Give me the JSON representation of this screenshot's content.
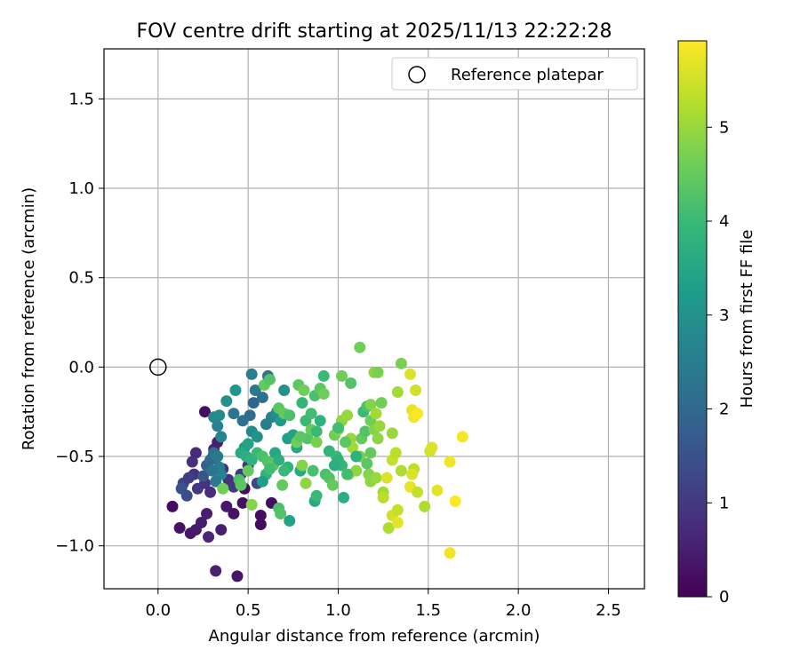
{
  "chart_data": {
    "type": "scatter",
    "title": "FOV centre drift starting at 2025/11/13 22:22:28",
    "xlabel": "Angular distance from reference (arcmin)",
    "ylabel": "Rotation from reference (arcmin)",
    "xlim": [
      -0.3,
      2.7
    ],
    "ylim": [
      -1.24,
      1.78
    ],
    "xticks": [
      0.0,
      0.5,
      1.0,
      1.5,
      2.0,
      2.5
    ],
    "xtick_labels": [
      "0.0",
      "0.5",
      "1.0",
      "1.5",
      "2.0",
      "2.5"
    ],
    "yticks": [
      -1.0,
      -0.5,
      0.0,
      0.5,
      1.0,
      1.5
    ],
    "ytick_labels": [
      "−1.0",
      "−0.5",
      "0.0",
      "0.5",
      "1.0",
      "1.5"
    ],
    "grid": true,
    "legend": {
      "position": "top-right",
      "entries": [
        {
          "label": "Reference platepar",
          "marker": "open-circle"
        }
      ]
    },
    "reference_point": {
      "x": 0.0,
      "y": 0.0
    },
    "colorbar": {
      "label": "Hours from first FF file",
      "range": [
        0,
        5.92
      ],
      "ticks": [
        0,
        1,
        2,
        3,
        4,
        5
      ],
      "tick_labels": [
        "0",
        "1",
        "2",
        "3",
        "4",
        "5"
      ],
      "colormap": "viridis",
      "stops": [
        "#440154",
        "#482878",
        "#3e4989",
        "#31688e",
        "#26828e",
        "#1f9e89",
        "#35b779",
        "#6ece58",
        "#b5de2b",
        "#fde725"
      ]
    },
    "points": [
      [
        0.08,
        -0.78,
        0.15
      ],
      [
        0.12,
        -0.9,
        0.3
      ],
      [
        0.18,
        -0.93,
        0.35
      ],
      [
        0.21,
        -0.91,
        0.4
      ],
      [
        0.24,
        -0.87,
        0.45
      ],
      [
        0.27,
        -0.82,
        0.5
      ],
      [
        0.28,
        -0.95,
        0.6
      ],
      [
        0.32,
        -1.14,
        0.55
      ],
      [
        0.35,
        -0.91,
        0.5
      ],
      [
        0.38,
        -0.78,
        0.4
      ],
      [
        0.44,
        -1.17,
        0.35
      ],
      [
        0.42,
        -0.82,
        0.3
      ],
      [
        0.47,
        -0.76,
        0.25
      ],
      [
        0.26,
        -0.25,
        0.2
      ],
      [
        0.21,
        -0.48,
        0.7
      ],
      [
        0.19,
        -0.53,
        0.8
      ],
      [
        0.2,
        -0.6,
        0.9
      ],
      [
        0.14,
        -0.65,
        1.2
      ],
      [
        0.17,
        -0.62,
        1.1
      ],
      [
        0.22,
        -0.68,
        1.0
      ],
      [
        0.26,
        -0.65,
        0.9
      ],
      [
        0.29,
        -0.7,
        0.8
      ],
      [
        0.31,
        -0.46,
        0.6
      ],
      [
        0.33,
        -0.42,
        0.5
      ],
      [
        0.3,
        -0.51,
        0.7
      ],
      [
        0.36,
        -0.57,
        0.8
      ],
      [
        0.39,
        -0.63,
        0.9
      ],
      [
        0.42,
        -0.67,
        1.0
      ],
      [
        0.46,
        -0.6,
        0.95
      ],
      [
        0.5,
        -0.55,
        0.9
      ],
      [
        0.48,
        -0.68,
        0.2
      ],
      [
        0.55,
        -0.65,
        1.3
      ],
      [
        0.57,
        -0.83,
        0.2
      ],
      [
        0.57,
        -0.88,
        0.15
      ],
      [
        0.63,
        -0.76,
        0.2
      ],
      [
        0.13,
        -0.68,
        1.5
      ],
      [
        0.16,
        -0.72,
        1.4
      ],
      [
        0.25,
        -0.61,
        1.6
      ],
      [
        0.27,
        -0.55,
        1.8
      ],
      [
        0.29,
        -0.52,
        2.0
      ],
      [
        0.31,
        -0.48,
        2.2
      ],
      [
        0.33,
        -0.5,
        2.4
      ],
      [
        0.34,
        -0.56,
        2.5
      ],
      [
        0.35,
        -0.6,
        2.6
      ],
      [
        0.32,
        -0.64,
        2.4
      ],
      [
        0.3,
        -0.58,
        2.3
      ],
      [
        0.33,
        -0.33,
        2.6
      ],
      [
        0.35,
        -0.39,
        2.7
      ],
      [
        0.31,
        -0.28,
        2.8
      ],
      [
        0.34,
        -0.27,
        2.9
      ],
      [
        0.38,
        -0.19,
        3.0
      ],
      [
        0.43,
        -0.13,
        3.1
      ],
      [
        0.42,
        -0.26,
        2.3
      ],
      [
        0.47,
        -0.3,
        2.2
      ],
      [
        0.51,
        -0.27,
        2.1
      ],
      [
        0.53,
        -0.2,
        1.9
      ],
      [
        0.52,
        -0.04,
        2.5
      ],
      [
        0.54,
        -0.13,
        2.4
      ],
      [
        0.58,
        -0.17,
        2.2
      ],
      [
        0.61,
        -0.05,
        2.3
      ],
      [
        0.6,
        -0.32,
        2.5
      ],
      [
        0.63,
        -0.28,
        2.7
      ],
      [
        0.66,
        -0.25,
        2.9
      ],
      [
        0.7,
        -0.13,
        3.0
      ],
      [
        0.68,
        -0.3,
        3.2
      ],
      [
        0.72,
        -0.4,
        3.3
      ],
      [
        0.75,
        -0.38,
        3.4
      ],
      [
        0.77,
        -0.45,
        3.5
      ],
      [
        0.79,
        -0.58,
        3.6
      ],
      [
        0.72,
        -0.56,
        3.8
      ],
      [
        0.73,
        -0.86,
        3.4
      ],
      [
        0.52,
        -0.36,
        2.8
      ],
      [
        0.55,
        -0.39,
        3.0
      ],
      [
        0.48,
        -0.45,
        3.2
      ],
      [
        0.5,
        -0.43,
        3.4
      ],
      [
        0.46,
        -0.48,
        3.6
      ],
      [
        0.49,
        -0.5,
        3.7
      ],
      [
        0.52,
        -0.52,
        3.8
      ],
      [
        0.55,
        -0.48,
        4.0
      ],
      [
        0.58,
        -0.5,
        4.2
      ],
      [
        0.61,
        -0.53,
        4.3
      ],
      [
        0.64,
        -0.55,
        4.4
      ],
      [
        0.5,
        -0.58,
        4.5
      ],
      [
        0.45,
        -0.63,
        4.2
      ],
      [
        0.46,
        -0.66,
        4.4
      ],
      [
        0.36,
        -0.68,
        4.6
      ],
      [
        0.52,
        -0.77,
        4.8
      ],
      [
        0.6,
        -0.6,
        3.9
      ],
      [
        0.62,
        -0.57,
        4.1
      ],
      [
        0.65,
        -0.48,
        3.5
      ],
      [
        0.67,
        -0.52,
        3.7
      ],
      [
        0.58,
        -0.64,
        3.3
      ],
      [
        0.67,
        -0.79,
        4.2
      ],
      [
        0.68,
        -0.82,
        4.3
      ],
      [
        0.69,
        -0.66,
        4.5
      ],
      [
        0.7,
        -0.58,
        4.0
      ],
      [
        0.67,
        -0.23,
        4.4
      ],
      [
        0.7,
        -0.26,
        4.5
      ],
      [
        0.73,
        -0.27,
        4.2
      ],
      [
        0.59,
        -0.1,
        4.5
      ],
      [
        0.62,
        -0.07,
        4.3
      ],
      [
        0.78,
        -0.1,
        4.4
      ],
      [
        0.81,
        -0.13,
        4.6
      ],
      [
        0.8,
        -0.2,
        3.9
      ],
      [
        0.82,
        -0.3,
        4.0
      ],
      [
        0.85,
        -0.26,
        4.1
      ],
      [
        0.87,
        -0.16,
        4.2
      ],
      [
        0.9,
        -0.12,
        4.4
      ],
      [
        0.92,
        -0.15,
        4.6
      ],
      [
        0.92,
        -0.05,
        4.0
      ],
      [
        0.83,
        -0.4,
        4.3
      ],
      [
        0.85,
        -0.35,
        4.5
      ],
      [
        0.88,
        -0.42,
        4.7
      ],
      [
        0.8,
        -0.55,
        4.8
      ],
      [
        0.82,
        -0.65,
        4.9
      ],
      [
        0.77,
        -0.42,
        4.6
      ],
      [
        0.79,
        -0.39,
        4.4
      ],
      [
        0.86,
        -0.58,
        4.2
      ],
      [
        0.87,
        -0.75,
        3.6
      ],
      [
        0.88,
        -0.72,
        4.0
      ],
      [
        0.93,
        -0.6,
        4.2
      ],
      [
        0.95,
        -0.62,
        4.3
      ],
      [
        0.97,
        -0.66,
        4.5
      ],
      [
        0.99,
        -0.5,
        4.0
      ],
      [
        1.0,
        -0.52,
        3.8
      ],
      [
        1.02,
        -0.55,
        3.9
      ],
      [
        1.03,
        -0.73,
        3.7
      ],
      [
        0.98,
        -0.38,
        4.6
      ],
      [
        1.0,
        -0.35,
        4.8
      ],
      [
        1.02,
        -0.3,
        4.9
      ],
      [
        1.05,
        -0.27,
        5.0
      ],
      [
        1.07,
        -0.4,
        5.0
      ],
      [
        1.08,
        -0.45,
        5.1
      ],
      [
        1.06,
        -0.6,
        5.0
      ],
      [
        1.1,
        -0.58,
        4.9
      ],
      [
        1.12,
        -0.5,
        4.7
      ],
      [
        1.13,
        -0.4,
        4.5
      ],
      [
        1.15,
        -0.36,
        4.3
      ],
      [
        1.14,
        -0.25,
        4.0
      ],
      [
        1.16,
        -0.22,
        4.2
      ],
      [
        1.18,
        -0.3,
        4.6
      ],
      [
        1.2,
        -0.35,
        4.8
      ],
      [
        1.02,
        -0.05,
        4.6
      ],
      [
        1.07,
        -0.09,
        4.3
      ],
      [
        1.12,
        0.11,
        4.6
      ],
      [
        1.2,
        -0.03,
        4.9
      ],
      [
        1.22,
        -0.03,
        4.7
      ],
      [
        1.18,
        -0.21,
        4.8
      ],
      [
        1.21,
        -0.26,
        5.1
      ],
      [
        1.23,
        -0.33,
        5.0
      ],
      [
        1.22,
        -0.4,
        4.9
      ],
      [
        1.24,
        -0.2,
        4.6
      ],
      [
        1.18,
        -0.48,
        4.5
      ],
      [
        1.17,
        -0.6,
        4.8
      ],
      [
        1.18,
        -0.64,
        4.9
      ],
      [
        1.21,
        -0.62,
        5.0
      ],
      [
        1.25,
        -0.7,
        5.1
      ],
      [
        1.25,
        -0.73,
        5.3
      ],
      [
        1.27,
        -0.62,
        5.6
      ],
      [
        1.3,
        -0.52,
        5.4
      ],
      [
        1.28,
        -0.9,
        5.2
      ],
      [
        1.3,
        -0.83,
        5.5
      ],
      [
        1.33,
        -0.8,
        5.4
      ],
      [
        1.33,
        -0.87,
        5.7
      ],
      [
        1.35,
        -0.58,
        5.2
      ],
      [
        1.32,
        -0.48,
        5.3
      ],
      [
        1.3,
        -0.37,
        5.0
      ],
      [
        1.33,
        -0.14,
        5.1
      ],
      [
        1.35,
        0.02,
        4.7
      ],
      [
        1.4,
        -0.04,
        5.6
      ],
      [
        1.43,
        -0.13,
        5.5
      ],
      [
        1.41,
        -0.24,
        5.7
      ],
      [
        1.42,
        -0.28,
        5.8
      ],
      [
        1.44,
        -0.26,
        5.9
      ],
      [
        1.42,
        -0.57,
        5.3
      ],
      [
        1.41,
        -0.6,
        5.6
      ],
      [
        1.4,
        -0.67,
        5.7
      ],
      [
        1.44,
        -0.7,
        5.4
      ],
      [
        1.48,
        -0.78,
        5.2
      ],
      [
        1.51,
        -0.47,
        5.5
      ],
      [
        1.52,
        -0.45,
        5.6
      ],
      [
        1.55,
        -0.69,
        5.7
      ],
      [
        1.62,
        -0.53,
        5.8
      ],
      [
        1.62,
        -1.04,
        5.8
      ],
      [
        1.65,
        -0.75,
        5.9
      ],
      [
        1.69,
        -0.39,
        5.85
      ],
      [
        1.16,
        -0.54,
        4.4
      ],
      [
        1.1,
        -0.5,
        3.8
      ],
      [
        1.05,
        -0.6,
        4.1
      ],
      [
        0.98,
        -0.55,
        3.7
      ],
      [
        0.95,
        -0.47,
        3.9
      ],
      [
        1.0,
        -0.34,
        4.1
      ],
      [
        1.04,
        -0.42,
        4.4
      ],
      [
        0.9,
        -0.3,
        3.8
      ],
      [
        0.88,
        -0.36,
        4.0
      ]
    ]
  }
}
